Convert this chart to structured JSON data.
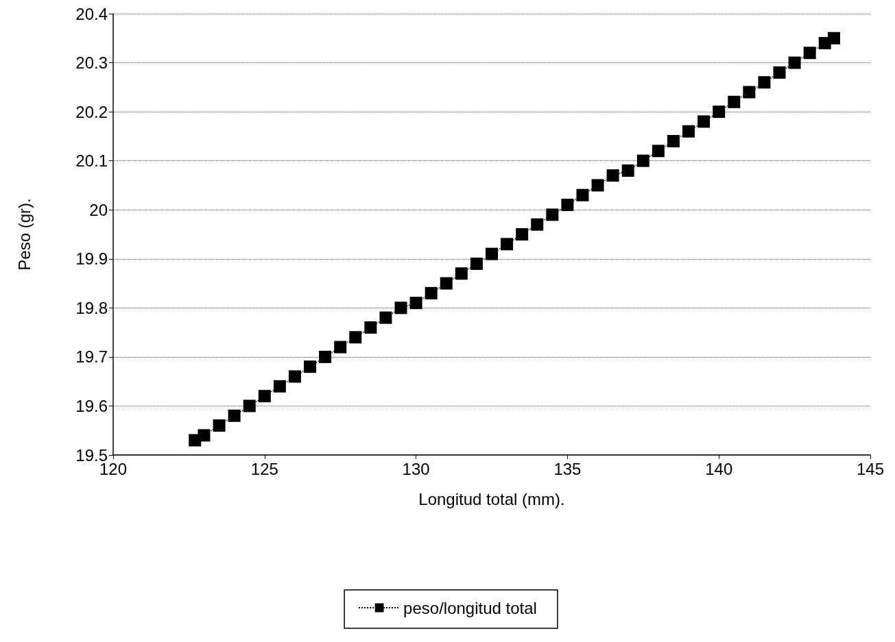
{
  "chart_data": {
    "type": "line",
    "xlabel": "Longitud total (mm).",
    "ylabel": "Peso (gr).",
    "xlim": [
      120,
      145
    ],
    "xticks": [
      120,
      125,
      130,
      135,
      140,
      145
    ],
    "ylim": [
      19.5,
      20.4
    ],
    "yticks": [
      19.5,
      19.6,
      19.7,
      19.8,
      19.9,
      20,
      20.1,
      20.2,
      20.3,
      20.4
    ],
    "grid": "y",
    "legend": "bottom",
    "marker": "square",
    "line_style": "dotted",
    "series": [
      {
        "name": "peso/longitud total",
        "color": "#000000",
        "x": [
          122.7,
          123,
          123.5,
          124,
          124.5,
          125,
          125.5,
          126,
          126.5,
          127,
          127.5,
          128,
          128.5,
          129,
          129.5,
          130,
          130.5,
          131,
          131.5,
          132,
          132.5,
          133,
          133.5,
          134,
          134.5,
          135,
          135.5,
          136,
          136.5,
          137,
          137.5,
          138,
          138.5,
          139,
          139.5,
          140,
          140.5,
          141,
          141.5,
          142,
          142.5,
          143,
          143.5,
          143.8
        ],
        "values": [
          19.53,
          19.54,
          19.56,
          19.58,
          19.6,
          19.62,
          19.64,
          19.66,
          19.68,
          19.7,
          19.72,
          19.74,
          19.76,
          19.78,
          19.8,
          19.81,
          19.83,
          19.85,
          19.87,
          19.89,
          19.91,
          19.93,
          19.95,
          19.97,
          19.99,
          20.01,
          20.03,
          20.05,
          20.07,
          20.08,
          20.1,
          20.12,
          20.14,
          20.16,
          20.18,
          20.2,
          20.22,
          20.24,
          20.26,
          20.28,
          20.3,
          20.32,
          20.34,
          20.35
        ]
      }
    ]
  }
}
